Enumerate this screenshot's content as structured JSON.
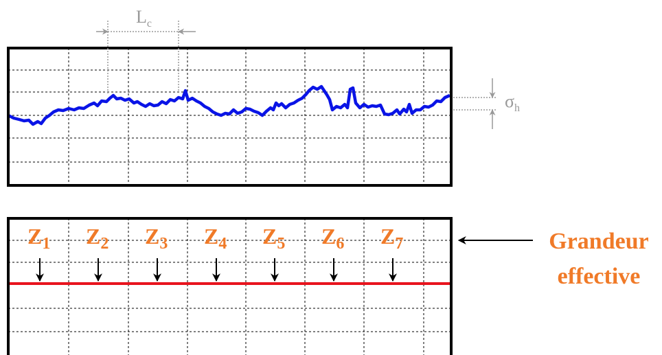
{
  "lc_label": {
    "main": "L",
    "sub": "c"
  },
  "sigma_label": {
    "main": "σ",
    "sub": "h"
  },
  "zones": [
    {
      "main": "Z",
      "sub": "1"
    },
    {
      "main": "Z",
      "sub": "2"
    },
    {
      "main": "Z",
      "sub": "3"
    },
    {
      "main": "Z",
      "sub": "4"
    },
    {
      "main": "Z",
      "sub": "5"
    },
    {
      "main": "Z",
      "sub": "6"
    },
    {
      "main": "Z",
      "sub": "7"
    }
  ],
  "effective_label": [
    "Grandeur",
    "effective"
  ]
}
